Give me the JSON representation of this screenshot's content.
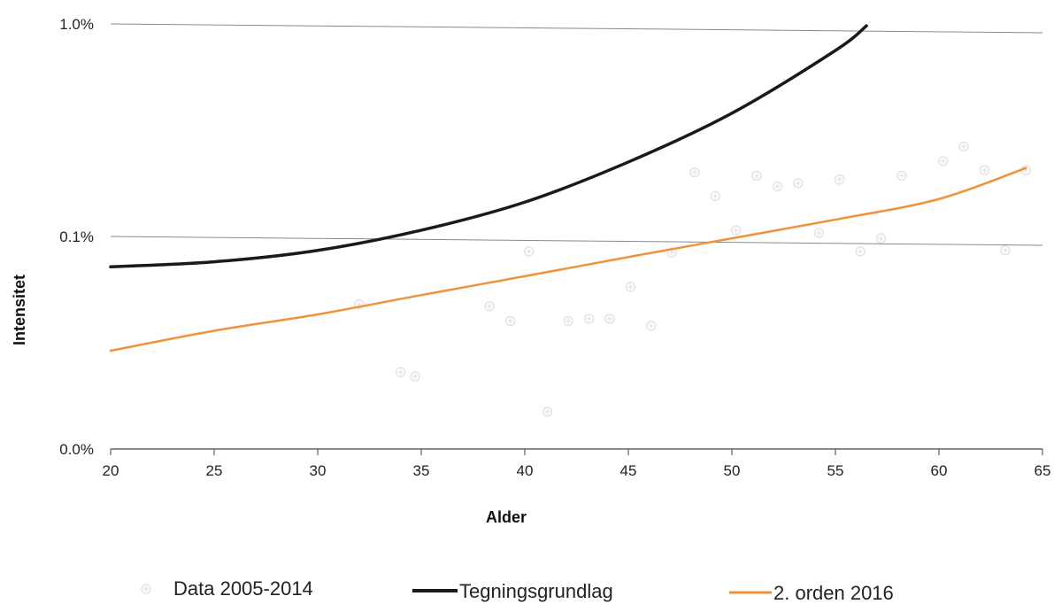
{
  "chart_data": {
    "type": "line",
    "title": "",
    "xlabel": "Alder",
    "ylabel": "Intensitet",
    "xlim": [
      20,
      65
    ],
    "x_ticks": [
      20,
      25,
      30,
      35,
      40,
      45,
      50,
      55,
      60,
      65
    ],
    "y_ticks": [
      {
        "label": "0.0%",
        "value": 0.0001
      },
      {
        "label": "0.1%",
        "value": 0.001
      },
      {
        "label": "1.0%",
        "value": 0.01
      }
    ],
    "y_scale": "log",
    "ylim": [
      0.0001,
      0.01
    ],
    "grid": "horizontal",
    "legend_position": "bottom",
    "colors": {
      "data": "#e2e2e2",
      "tegningsgrundlag": "#1a1a1a",
      "orden": "#f0923a",
      "grid": "#888888",
      "axis": "#444444"
    },
    "series": [
      {
        "name": "Data 2005-2014",
        "kind": "scatter",
        "points": [
          [
            32,
            0.00048
          ],
          [
            34,
            0.00023
          ],
          [
            34.7,
            0.00022
          ],
          [
            38.3,
            0.00047
          ],
          [
            39.3,
            0.0004
          ],
          [
            40.2,
            0.00085
          ],
          [
            41.1,
            0.00015
          ],
          [
            42.1,
            0.0004
          ],
          [
            43.1,
            0.00041
          ],
          [
            44.1,
            0.00041
          ],
          [
            45.1,
            0.00058
          ],
          [
            46.1,
            0.00038
          ],
          [
            47.1,
            0.00084
          ],
          [
            48.2,
            0.002
          ],
          [
            49.2,
            0.00155
          ],
          [
            50.2,
            0.00107
          ],
          [
            51.2,
            0.00193
          ],
          [
            52.2,
            0.00172
          ],
          [
            53.2,
            0.00178
          ],
          [
            54.2,
            0.00104
          ],
          [
            55.2,
            0.00185
          ],
          [
            56.2,
            0.00085
          ],
          [
            57.2,
            0.00098
          ],
          [
            58.2,
            0.00193
          ],
          [
            60.2,
            0.00226
          ],
          [
            61.2,
            0.00265
          ],
          [
            62.2,
            0.00205
          ],
          [
            63.2,
            0.00086
          ],
          [
            64.2,
            0.00205
          ]
        ]
      },
      {
        "name": "Tegningsgrundlag",
        "kind": "line",
        "points": [
          [
            20,
            0.00072
          ],
          [
            25,
            0.00076
          ],
          [
            30,
            0.00086
          ],
          [
            35,
            0.00107
          ],
          [
            40,
            0.00145
          ],
          [
            45,
            0.00224
          ],
          [
            50,
            0.0038
          ],
          [
            55,
            0.0075
          ],
          [
            56.5,
            0.0098
          ]
        ]
      },
      {
        "name": "2. orden 2016",
        "kind": "line",
        "points": [
          [
            20,
            0.00029
          ],
          [
            25,
            0.00036
          ],
          [
            30,
            0.00043
          ],
          [
            35,
            0.00053
          ],
          [
            40,
            0.00065
          ],
          [
            45,
            0.0008
          ],
          [
            50,
            0.00098
          ],
          [
            55,
            0.0012
          ],
          [
            60,
            0.0015
          ],
          [
            64.2,
            0.0021
          ]
        ]
      }
    ]
  }
}
